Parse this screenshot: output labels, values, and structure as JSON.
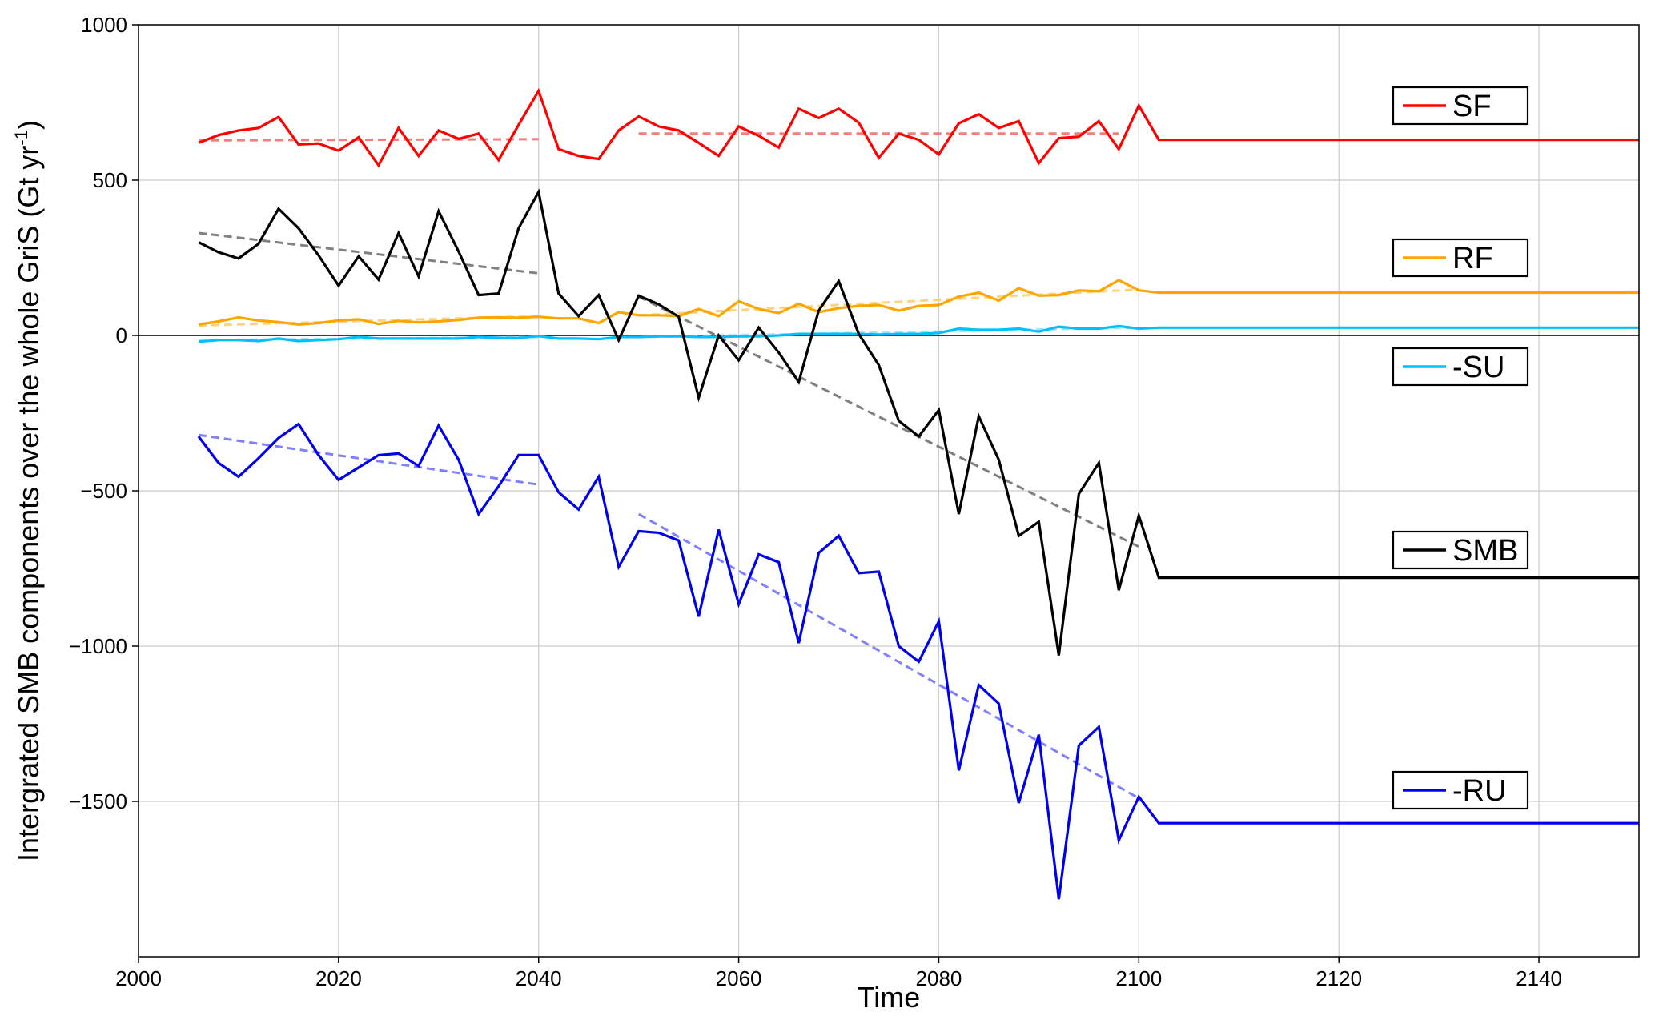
{
  "chart_data": {
    "type": "line",
    "title": "",
    "xlabel": "Time",
    "ylabel_main": "Intergrated SMB components over the whole GriS (Gt yr",
    "ylabel_exp": "-1",
    "ylabel_close": ")",
    "xlim": [
      2000,
      2150
    ],
    "ylim": [
      -2000,
      1000
    ],
    "xticks": [
      2000,
      2020,
      2040,
      2060,
      2080,
      2100,
      2120,
      2140
    ],
    "yticks": [
      -1500,
      -1000,
      -500,
      0,
      500,
      1000
    ],
    "xtick_labels": [
      "2000",
      "2020",
      "2040",
      "2060",
      "2080",
      "2100",
      "2120",
      "2140"
    ],
    "ytick_labels": [
      "−1500",
      "−1000",
      "−500",
      "0",
      "500",
      "1000"
    ],
    "grid": true,
    "legend_placement": "right, one box per series",
    "x": [
      2006,
      2008,
      2010,
      2012,
      2014,
      2016,
      2018,
      2020,
      2022,
      2024,
      2026,
      2028,
      2030,
      2032,
      2034,
      2036,
      2038,
      2040,
      2042,
      2044,
      2046,
      2048,
      2050,
      2052,
      2054,
      2056,
      2058,
      2060,
      2062,
      2064,
      2066,
      2068,
      2070,
      2072,
      2074,
      2076,
      2078,
      2080,
      2082,
      2084,
      2086,
      2088,
      2090,
      2092,
      2094,
      2096,
      2098,
      2100,
      2102,
      2150
    ],
    "series": [
      {
        "name": "SF",
        "color": "#ff0000",
        "values": [
          620,
          645,
          660,
          668,
          703,
          615,
          618,
          595,
          638,
          548,
          668,
          578,
          660,
          633,
          650,
          565,
          678,
          787,
          600,
          578,
          568,
          660,
          705,
          673,
          660,
          620,
          578,
          673,
          643,
          605,
          730,
          700,
          730,
          685,
          572,
          650,
          630,
          583,
          683,
          712,
          668,
          690,
          555,
          635,
          640,
          690,
          600,
          740,
          630,
          630
        ],
        "trend_color": "#f08080",
        "trends": [
          {
            "x": [
              2006,
              2040
            ],
            "y": [
              628,
              632
            ]
          },
          {
            "x": [
              2050,
              2098
            ],
            "y": [
              650,
              650
            ]
          }
        ]
      },
      {
        "name": "RF",
        "color": "#ffa500",
        "values": [
          35,
          45,
          58,
          48,
          43,
          35,
          40,
          48,
          52,
          37,
          47,
          42,
          45,
          50,
          57,
          58,
          57,
          60,
          55,
          55,
          40,
          75,
          65,
          65,
          62,
          85,
          62,
          110,
          85,
          72,
          102,
          75,
          88,
          95,
          98,
          80,
          95,
          98,
          125,
          138,
          112,
          152,
          128,
          130,
          145,
          142,
          178,
          145,
          138,
          138
        ],
        "trend_color": "#ffd27f",
        "trends": [
          {
            "x": [
              2006,
              2040
            ],
            "y": [
              32,
              62
            ]
          },
          {
            "x": [
              2050,
              2100
            ],
            "y": [
              65,
              148
            ]
          }
        ]
      },
      {
        "name": "-SU",
        "color": "#00bfff",
        "values": [
          -20,
          -15,
          -15,
          -18,
          -10,
          -18,
          -15,
          -12,
          -5,
          -10,
          -10,
          -10,
          -10,
          -10,
          -5,
          -8,
          -8,
          -2,
          -10,
          -10,
          -12,
          -5,
          -5,
          -3,
          -3,
          -5,
          -5,
          -3,
          -3,
          0,
          5,
          5,
          5,
          5,
          3,
          5,
          5,
          8,
          22,
          18,
          18,
          22,
          12,
          28,
          22,
          22,
          30,
          22,
          25,
          25
        ],
        "trend_color": "#99e5ff",
        "trends": [
          {
            "x": [
              2006,
              2040
            ],
            "y": [
              -15,
              -5
            ]
          },
          {
            "x": [
              2050,
              2100
            ],
            "y": [
              -5,
              25
            ]
          }
        ]
      },
      {
        "name": "SMB",
        "color": "#000000",
        "values": [
          300,
          268,
          248,
          295,
          408,
          345,
          258,
          160,
          255,
          180,
          330,
          190,
          400,
          270,
          130,
          135,
          345,
          462,
          135,
          62,
          130,
          -15,
          128,
          100,
          60,
          -200,
          0,
          -80,
          25,
          -55,
          -150,
          80,
          175,
          5,
          -95,
          -275,
          -325,
          -240,
          -575,
          -260,
          -400,
          -645,
          -600,
          -1030,
          -510,
          -410,
          -820,
          -580,
          -780,
          -780
        ],
        "trend_color": "#808080",
        "trends": [
          {
            "x": [
              2006,
              2040
            ],
            "y": [
              330,
              200
            ]
          },
          {
            "x": [
              2050,
              2100
            ],
            "y": [
              125,
              -680
            ]
          }
        ]
      },
      {
        "name": "-RU",
        "color": "#0000ee",
        "values": [
          -325,
          -410,
          -455,
          -395,
          -330,
          -285,
          -385,
          -465,
          -425,
          -385,
          -380,
          -420,
          -290,
          -400,
          -575,
          -485,
          -385,
          -385,
          -505,
          -560,
          -455,
          -745,
          -630,
          -635,
          -660,
          -905,
          -625,
          -865,
          -705,
          -730,
          -990,
          -700,
          -645,
          -765,
          -760,
          -1000,
          -1050,
          -920,
          -1400,
          -1125,
          -1185,
          -1505,
          -1285,
          -1815,
          -1320,
          -1260,
          -1625,
          -1485,
          -1570,
          -1570
        ],
        "trend_color": "#8080ff",
        "trends": [
          {
            "x": [
              2006,
              2040
            ],
            "y": [
              -320,
              -480
            ]
          },
          {
            "x": [
              2050,
              2100
            ],
            "y": [
              -575,
              -1490
            ]
          }
        ]
      }
    ]
  }
}
